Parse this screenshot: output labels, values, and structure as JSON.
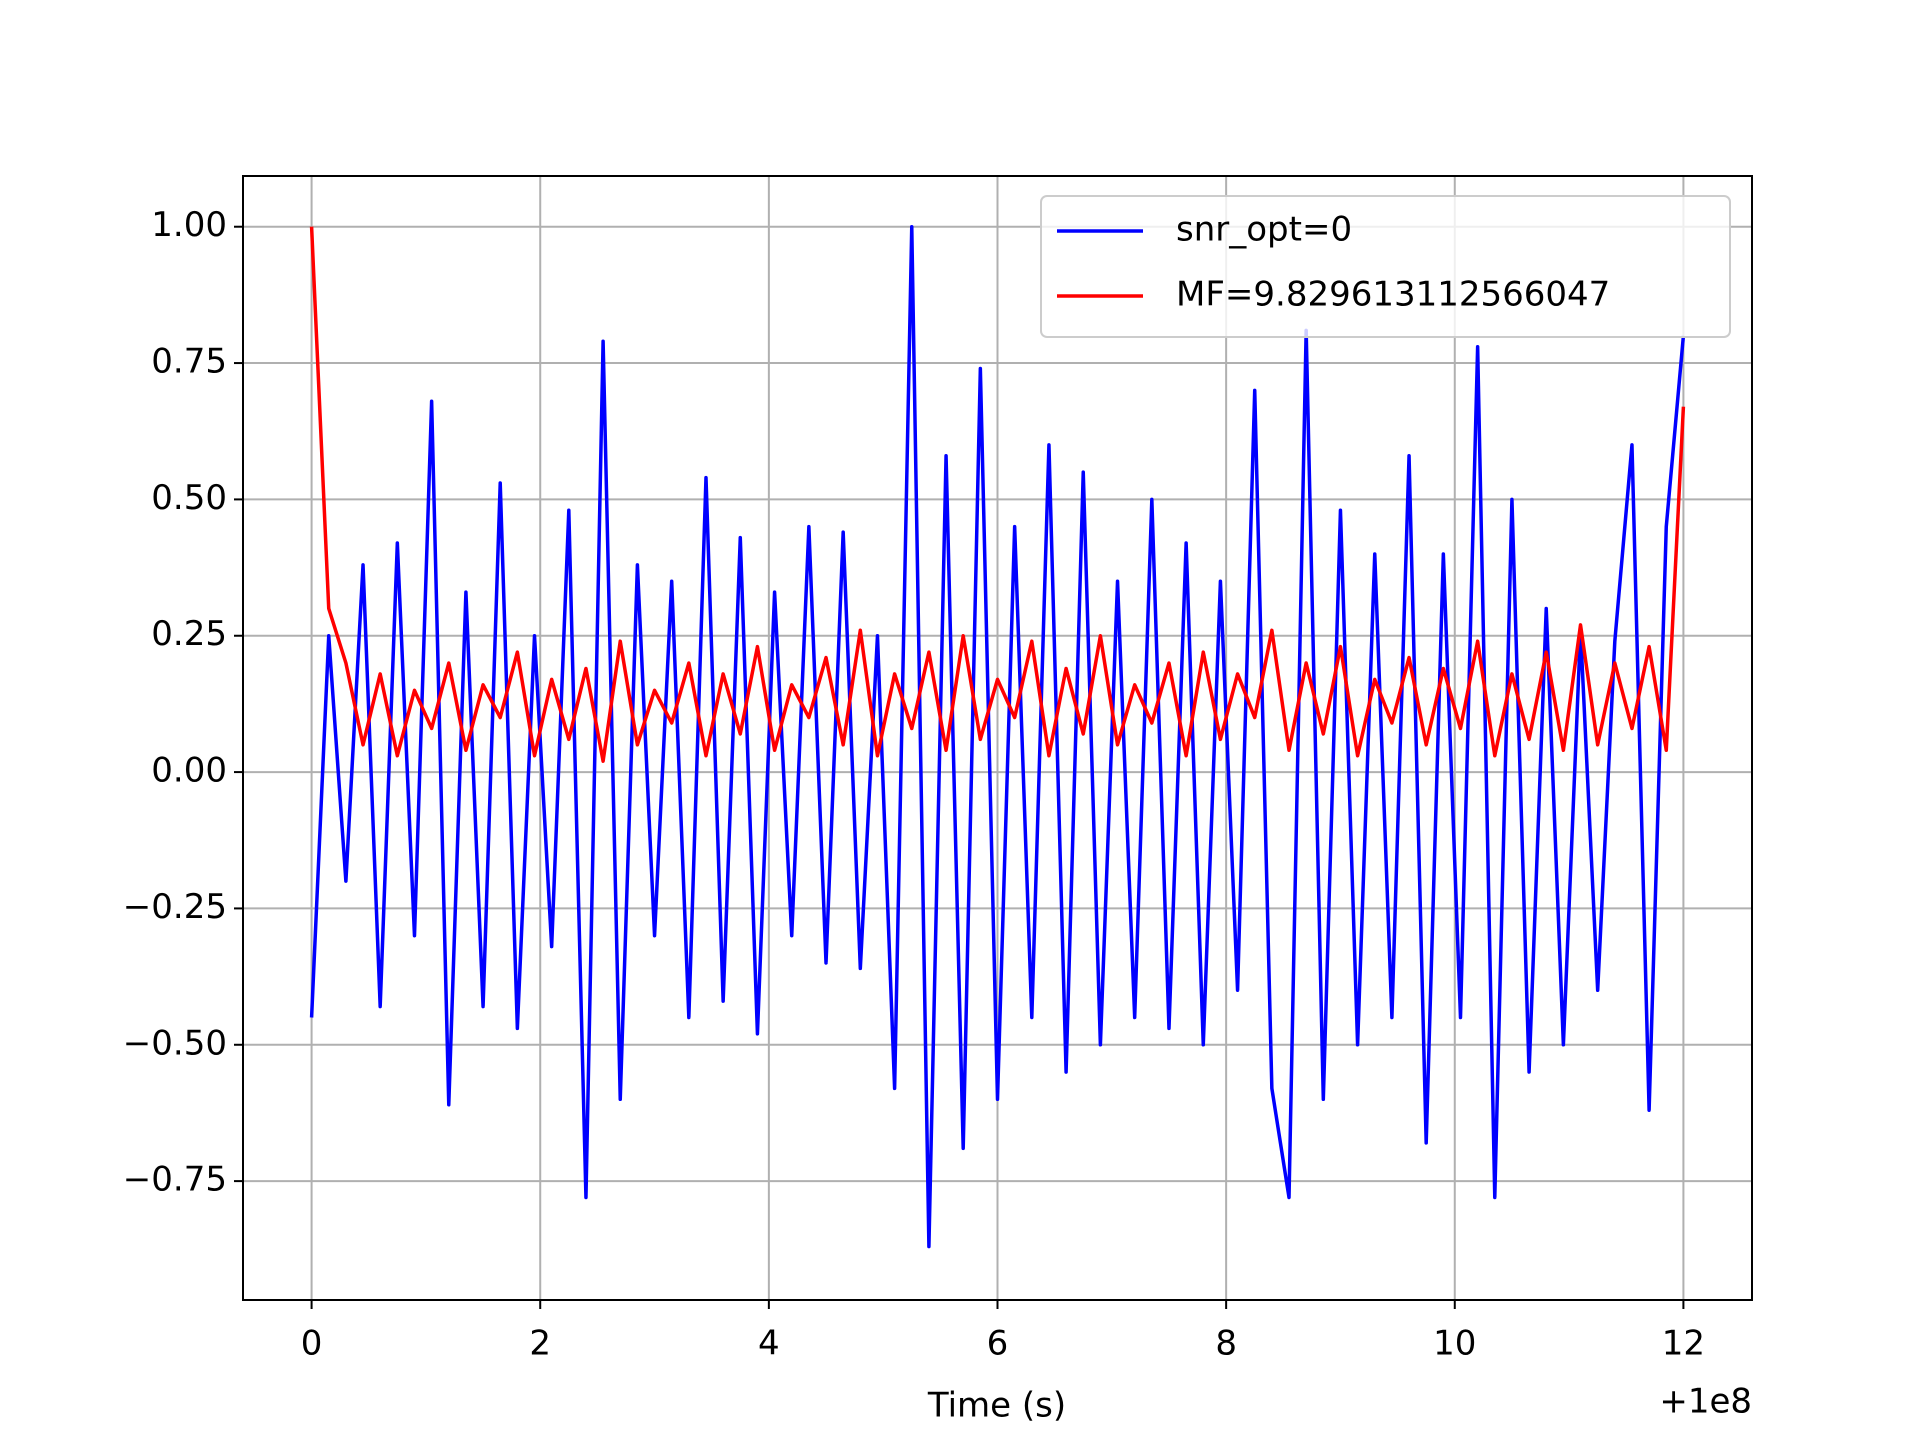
{
  "chart_data": {
    "type": "line",
    "x_label": "Time (s)",
    "x_offset_label": "+1e8",
    "xlim": [
      -0.6,
      12.6
    ],
    "ylim": [
      -0.968,
      1.093
    ],
    "xticks": [
      0,
      2,
      4,
      6,
      8,
      10,
      12
    ],
    "yticks": [
      {
        "value": -0.75,
        "label": "−0.75"
      },
      {
        "value": -0.5,
        "label": "−0.50"
      },
      {
        "value": -0.25,
        "label": "−0.25"
      },
      {
        "value": 0,
        "label": "0.00"
      },
      {
        "value": 0.25,
        "label": "0.25"
      },
      {
        "value": 0.5,
        "label": "0.50"
      },
      {
        "value": 0.75,
        "label": "0.75"
      },
      {
        "value": 1.0,
        "label": "1.00"
      }
    ],
    "grid": true,
    "legend_loc": "upper right",
    "x": [
      0,
      0.15,
      0.3,
      0.45,
      0.6,
      0.75,
      0.9,
      1.05,
      1.2,
      1.35,
      1.5,
      1.65,
      1.8,
      1.95,
      2.1,
      2.25,
      2.4,
      2.55,
      2.7,
      2.85,
      3.0,
      3.15,
      3.3,
      3.45,
      3.6,
      3.75,
      3.9,
      4.05,
      4.2,
      4.35,
      4.5,
      4.65,
      4.8,
      4.95,
      5.1,
      5.25,
      5.4,
      5.55,
      5.7,
      5.85,
      6.0,
      6.15,
      6.3,
      6.45,
      6.6,
      6.75,
      6.9,
      7.05,
      7.2,
      7.35,
      7.5,
      7.65,
      7.8,
      7.95,
      8.1,
      8.25,
      8.4,
      8.55,
      8.7,
      8.85,
      9.0,
      9.15,
      9.3,
      9.45,
      9.6,
      9.75,
      9.9,
      10.05,
      10.2,
      10.35,
      10.5,
      10.65,
      10.8,
      10.95,
      11.1,
      11.25,
      11.4,
      11.55,
      11.7,
      11.85,
      12.0
    ],
    "series": [
      {
        "name": "snr_opt=0",
        "color": "#0000ff",
        "values": [
          -0.45,
          0.25,
          -0.2,
          0.38,
          -0.43,
          0.42,
          -0.3,
          0.68,
          -0.61,
          0.33,
          -0.43,
          0.53,
          -0.47,
          0.25,
          -0.32,
          0.48,
          -0.78,
          0.79,
          -0.6,
          0.38,
          -0.3,
          0.35,
          -0.45,
          0.54,
          -0.42,
          0.43,
          -0.48,
          0.33,
          -0.3,
          0.45,
          -0.35,
          0.44,
          -0.36,
          0.25,
          -0.58,
          1.0,
          -0.87,
          0.58,
          -0.69,
          0.74,
          -0.6,
          0.45,
          -0.45,
          0.6,
          -0.55,
          0.55,
          -0.5,
          0.35,
          -0.45,
          0.5,
          -0.47,
          0.42,
          -0.5,
          0.35,
          -0.4,
          0.7,
          -0.58,
          -0.78,
          0.81,
          -0.6,
          0.48,
          -0.5,
          0.4,
          -0.45,
          0.58,
          -0.68,
          0.4,
          -0.45,
          0.78,
          -0.78,
          0.5,
          -0.55,
          0.3,
          -0.5,
          0.26,
          -0.4,
          0.24,
          0.6,
          -0.62,
          0.45,
          0.8
        ]
      },
      {
        "name": "MF=9.829613112566047",
        "color": "#ff0000",
        "values": [
          1.0,
          0.3,
          0.2,
          0.05,
          0.18,
          0.03,
          0.15,
          0.08,
          0.2,
          0.04,
          0.16,
          0.1,
          0.22,
          0.03,
          0.17,
          0.06,
          0.19,
          0.02,
          0.24,
          0.05,
          0.15,
          0.09,
          0.2,
          0.03,
          0.18,
          0.07,
          0.23,
          0.04,
          0.16,
          0.1,
          0.21,
          0.05,
          0.26,
          0.03,
          0.18,
          0.08,
          0.22,
          0.04,
          0.25,
          0.06,
          0.17,
          0.1,
          0.24,
          0.03,
          0.19,
          0.07,
          0.25,
          0.05,
          0.16,
          0.09,
          0.2,
          0.03,
          0.22,
          0.06,
          0.18,
          0.1,
          0.26,
          0.04,
          0.2,
          0.07,
          0.23,
          0.03,
          0.17,
          0.09,
          0.21,
          0.05,
          0.19,
          0.08,
          0.24,
          0.03,
          0.18,
          0.06,
          0.22,
          0.04,
          0.27,
          0.05,
          0.2,
          0.08,
          0.23,
          0.04,
          0.67
        ]
      }
    ]
  }
}
